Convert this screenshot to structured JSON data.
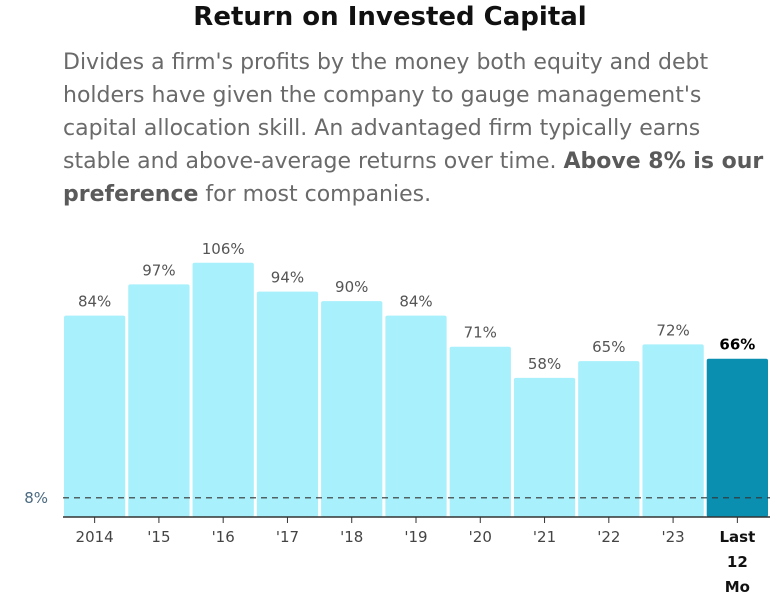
{
  "title": "Return on Invested Capital",
  "description": {
    "text": "Divides a firm's profits by the money both equity and debt holders have given the company to gauge management's capital allocation skill. An advantaged firm typically earns stable and above-average returns over time. ",
    "bold": "Above 8% is our preference",
    "tail": " for most companies."
  },
  "chart_data": {
    "type": "bar",
    "categories": [
      "2014",
      "'15",
      "'16",
      "'17",
      "'18",
      "'19",
      "'20",
      "'21",
      "'22",
      "'23",
      "Last 12 Mo"
    ],
    "values": [
      84,
      97,
      106,
      94,
      90,
      84,
      71,
      58,
      65,
      72,
      66
    ],
    "value_labels": [
      "84%",
      "97%",
      "106%",
      "94%",
      "90%",
      "84%",
      "71%",
      "58%",
      "65%",
      "72%",
      "66%"
    ],
    "highlight_index": 10,
    "reference_line": {
      "value": 8,
      "label": "8%"
    },
    "ylim": [
      0,
      110
    ],
    "colors": {
      "bar": "#a8f0fb",
      "highlight": "#0a8fb0",
      "reference": "#333333"
    }
  }
}
